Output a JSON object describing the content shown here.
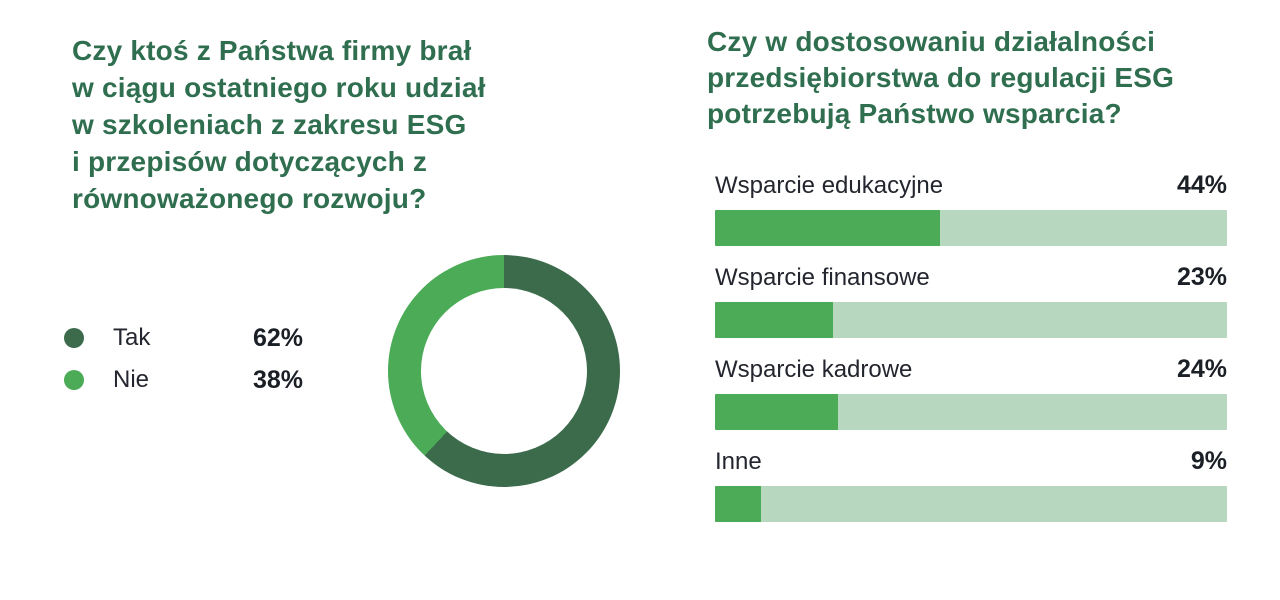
{
  "page": {
    "background": "#ffffff"
  },
  "colors": {
    "title_green": "#2F6E4F",
    "dark_green": "#3B6B4B",
    "medium_green": "#4BAB57",
    "track_green": "#B7D8BE",
    "label_text": "#23262E",
    "value_text": "#1B1F26"
  },
  "left_chart": {
    "title_lines": [
      "Czy ktoś z Państwa firmy brał",
      "w ciągu ostatniego roku udział",
      "w szkoleniach z zakresu ESG",
      "i przepisów dotyczących z",
      "równoważonego rozwoju?"
    ],
    "legend": [
      {
        "label": "Tak",
        "value_label": "62%"
      },
      {
        "label": "Nie",
        "value_label": "38%"
      }
    ]
  },
  "right_chart": {
    "title_lines": [
      "Czy w dostosowaniu działalności",
      "przedsiębiorstwa do regulacji ESG",
      "potrzebują Państwo wsparcia?"
    ],
    "rows": [
      {
        "label": "Wsparcie edukacyjne",
        "value": 44,
        "value_label": "44%"
      },
      {
        "label": "Wsparcie finansowe",
        "value": 23,
        "value_label": "23%"
      },
      {
        "label": "Wsparcie kadrowe",
        "value": 24,
        "value_label": "24%"
      },
      {
        "label": "Inne",
        "value": 9,
        "value_label": "9%"
      }
    ]
  },
  "chart_data": [
    {
      "type": "pie",
      "subtype": "donut",
      "title": "Czy ktoś z Państwa firmy brał w ciągu ostatniego roku udział w szkoleniach z zakresu ESG i przepisów dotyczących z równoważonego rozwoju?",
      "categories": [
        "Tak",
        "Nie"
      ],
      "values": [
        62,
        38
      ],
      "unit": "%",
      "colors": [
        "#3B6B4B",
        "#4BAB57"
      ],
      "start_angle_deg": 0,
      "direction": "clockwise",
      "legend_position": "left"
    },
    {
      "type": "bar",
      "orientation": "horizontal",
      "title": "Czy w dostosowaniu działalności przedsiębiorstwa do regulacji ESG potrzebują Państwo wsparcia?",
      "categories": [
        "Wsparcie edukacyjne",
        "Wsparcie finansowe",
        "Wsparcie kadrowe",
        "Inne"
      ],
      "values": [
        44,
        23,
        24,
        9
      ],
      "unit": "%",
      "xlim": [
        0,
        100
      ],
      "bar_color": "#4BAB57",
      "track_color": "#B7D8BE",
      "value_label_position": "top-right",
      "grid": false
    }
  ]
}
